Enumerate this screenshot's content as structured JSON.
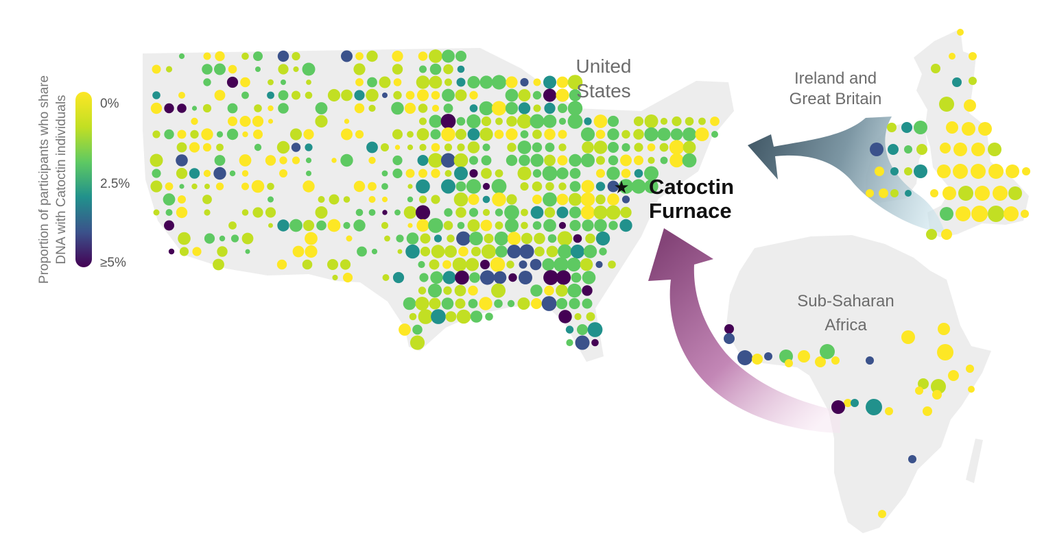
{
  "legend": {
    "title_line1": "Proportion of participants who share",
    "title_line2": "DNA with Catoctin individuals",
    "ticks": [
      "0%",
      "2.5%",
      "≥5%"
    ],
    "colors": [
      "#440154",
      "#3b528b",
      "#21918c",
      "#5ec962",
      "#c2df23",
      "#fde725"
    ]
  },
  "regions": {
    "us": [
      "United",
      "States"
    ],
    "britain": [
      "Ireland and",
      "Great Britain"
    ],
    "africa": [
      "Sub-Saharan",
      "Africa"
    ]
  },
  "site": {
    "line1": "Catoctin",
    "line2": "Furnace",
    "marker_icon": "star-icon"
  },
  "migration_arrows": [
    {
      "from": "Ireland and Great Britain",
      "to": "Catoctin Furnace",
      "color": "#4c6472"
    },
    {
      "from": "Sub-Saharan Africa",
      "to": "Catoctin Furnace",
      "color": "#8d4d7f"
    }
  ]
}
